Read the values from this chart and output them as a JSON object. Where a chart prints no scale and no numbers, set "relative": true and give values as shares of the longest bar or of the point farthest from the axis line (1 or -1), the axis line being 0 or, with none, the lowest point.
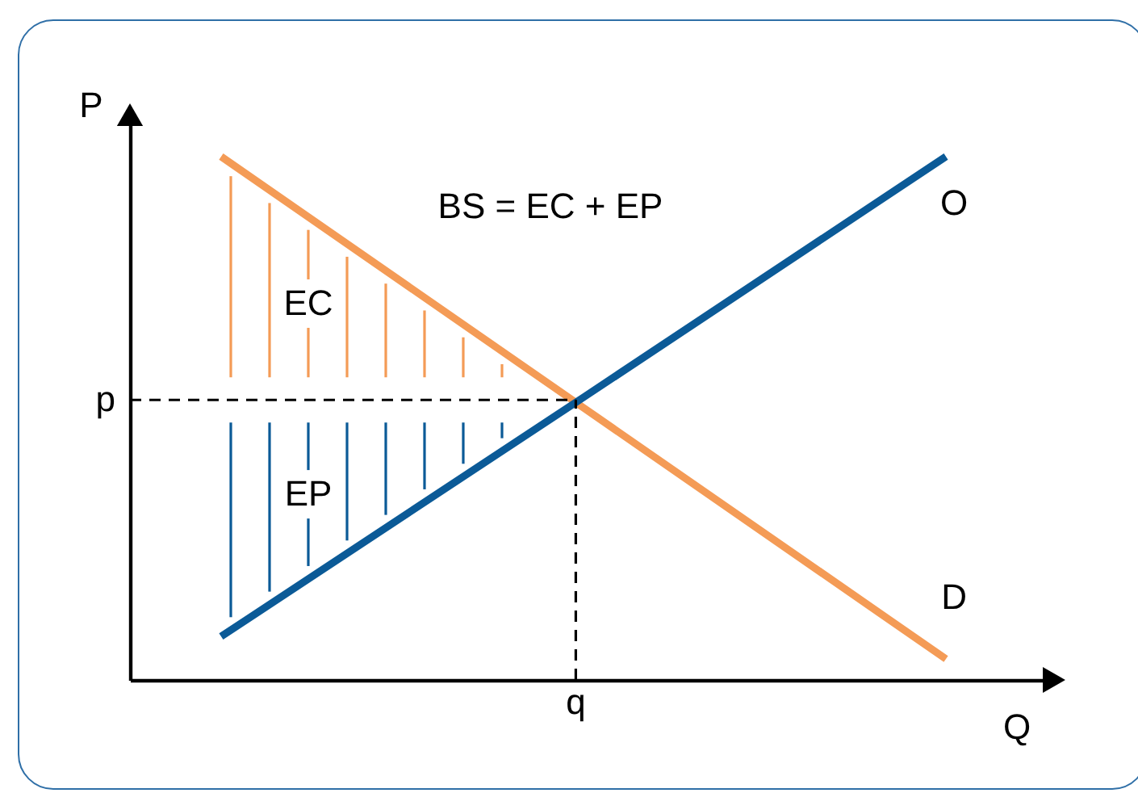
{
  "chart_data": {
    "type": "line",
    "relative": true,
    "xlabel": "Q",
    "ylabel": "P",
    "categories": [
      null,
      null,
      null
    ],
    "annotations": [
      "BS = EC + EP",
      "EC",
      "EP",
      "q"
    ],
    "series": [
      {
        "name": "D",
        "color": "#f49b56",
        "values": [
          1,
          0.52,
          0.04
        ]
      },
      {
        "name": "O",
        "color": "#0b5a97",
        "values": [
          0.083,
          0.54,
          1
        ]
      }
    ],
    "ref_lines": [
      {
        "axis": "y",
        "value": 0.535,
        "label": "p",
        "line_style": "dashed",
        "color": "#000000"
      }
    ],
    "legend": false
  }
}
